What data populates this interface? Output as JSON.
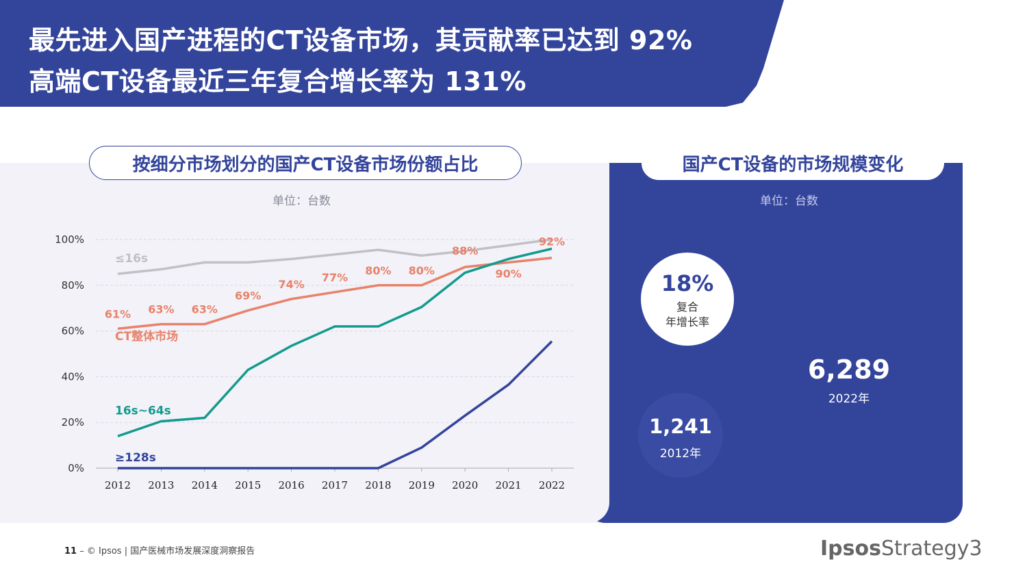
{
  "header": {
    "line1": "最先进入国产进程的CT设备市场，其贡献率已达到 92%",
    "line2": "高端CT设备最近三年复合增长率为 131%"
  },
  "left": {
    "title": "按细分市场划分的国产CT设备市场份额占比",
    "unit": "单位：台数"
  },
  "right": {
    "title": "国产CT设备的市场规模变化",
    "unit": "单位：台数",
    "cagr_value": "18%",
    "cagr_label_1": "复合",
    "cagr_label_2": "年增长率",
    "value_2012": "1,241",
    "year_2012": "2012年",
    "value_2022": "6,289",
    "year_2022": "2022年"
  },
  "footer": {
    "page": "11",
    "text": " – © Ipsos | 国产医械市场发展深度洞察报告",
    "brand_bold": "Ipsos",
    "brand_light": "Strategy3"
  },
  "chart_data": {
    "type": "line",
    "x": [
      "2012",
      "2013",
      "2014",
      "2015",
      "2016",
      "2017",
      "2018",
      "2019",
      "2020",
      "2021",
      "2022"
    ],
    "y_ticks": [
      "0%",
      "20%",
      "40%",
      "60%",
      "80%",
      "100%"
    ],
    "ylim": [
      0,
      100
    ],
    "grid": "horizontal dashed",
    "series": [
      {
        "name": "≤16s",
        "color": "#c0c0c6",
        "values": [
          85,
          87,
          90,
          90,
          91.5,
          93.5,
          95.5,
          93,
          95,
          97.5,
          100
        ]
      },
      {
        "name": "CT整体市场",
        "color": "#e8826a",
        "values": [
          61,
          63,
          63,
          69,
          74,
          77,
          80,
          80,
          88,
          90,
          92
        ],
        "labels": [
          "61%",
          "63%",
          "63%",
          "69%",
          "74%",
          "77%",
          "80%",
          "80%",
          "88%",
          "90%",
          "92%"
        ]
      },
      {
        "name": "16s~64s",
        "color": "#139a8e",
        "values": [
          14,
          20.5,
          22,
          43,
          53.5,
          62,
          62,
          70.5,
          85.5,
          91.5,
          96
        ]
      },
      {
        "name": "≥128s",
        "color": "#33449b",
        "values": [
          0,
          0,
          0,
          0,
          0,
          0,
          0,
          9,
          23,
          36.5,
          55.5
        ]
      }
    ]
  }
}
